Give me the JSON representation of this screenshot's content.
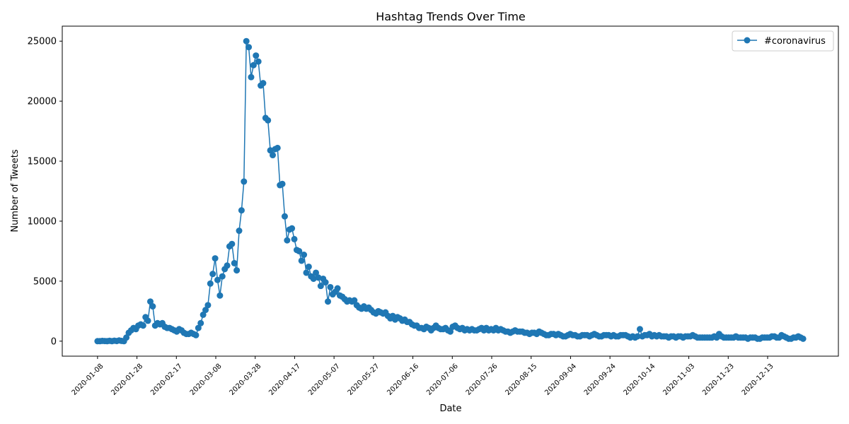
{
  "chart_data": {
    "type": "line",
    "title": "Hashtag Trends Over Time",
    "xlabel": "Date",
    "ylabel": "Number of Tweets",
    "x_start_date": "2020-01-08",
    "x_end_date": "2020-12-31",
    "ylim": [
      -1250,
      26250
    ],
    "yticks": [
      0,
      5000,
      10000,
      15000,
      20000,
      25000
    ],
    "xtick_labels": [
      "2020-01-08",
      "2020-01-28",
      "2020-02-17",
      "2020-03-08",
      "2020-03-28",
      "2020-04-17",
      "2020-05-07",
      "2020-05-27",
      "2020-06-16",
      "2020-07-06",
      "2020-07-26",
      "2020-08-15",
      "2020-09-04",
      "2020-09-24",
      "2020-10-14",
      "2020-11-03",
      "2020-11-23",
      "2020-12-13"
    ],
    "grid": false,
    "legend_position": "top-right",
    "color": "#1f77b4",
    "series": [
      {
        "name": "#coronavirus",
        "values": [
          0,
          0,
          20,
          10,
          0,
          30,
          0,
          40,
          10,
          60,
          20,
          0,
          300,
          700,
          900,
          1100,
          1000,
          1300,
          1400,
          1300,
          2000,
          1700,
          3300,
          2900,
          1300,
          1500,
          1400,
          1500,
          1200,
          1100,
          1100,
          1000,
          900,
          800,
          1000,
          900,
          700,
          600,
          600,
          700,
          600,
          500,
          1100,
          1500,
          2200,
          2600,
          3000,
          4800,
          5600,
          6900,
          5100,
          3800,
          5400,
          6000,
          6300,
          7900,
          8100,
          6500,
          5900,
          9200,
          10900,
          13300,
          25000,
          24500,
          22000,
          23000,
          23800,
          23300,
          21300,
          21500,
          18600,
          18400,
          15900,
          15500,
          16000,
          16100,
          13000,
          13100,
          10400,
          8400,
          9300,
          9400,
          8500,
          7600,
          7500,
          6700,
          7200,
          5700,
          6200,
          5400,
          5200,
          5700,
          5300,
          4600,
          5200,
          4900,
          3300,
          4500,
          3900,
          4100,
          4400,
          3800,
          3700,
          3500,
          3300,
          3400,
          3300,
          3400,
          3000,
          2800,
          2700,
          2900,
          2700,
          2800,
          2600,
          2400,
          2300,
          2500,
          2400,
          2300,
          2400,
          2100,
          1900,
          2100,
          1800,
          2000,
          1900,
          1700,
          1800,
          1600,
          1600,
          1400,
          1300,
          1300,
          1100,
          1100,
          1000,
          1200,
          1100,
          900,
          1100,
          1300,
          1100,
          1000,
          1000,
          1100,
          900,
          800,
          1200,
          1300,
          1100,
          1000,
          1100,
          900,
          1000,
          900,
          1000,
          900,
          900,
          1000,
          1100,
          900,
          1100,
          900,
          1000,
          900,
          1100,
          900,
          1000,
          900,
          800,
          800,
          700,
          800,
          900,
          800,
          800,
          800,
          700,
          700,
          600,
          700,
          700,
          600,
          800,
          700,
          600,
          500,
          500,
          600,
          600,
          500,
          600,
          500,
          400,
          400,
          500,
          600,
          500,
          500,
          400,
          400,
          500,
          500,
          500,
          400,
          500,
          600,
          500,
          400,
          400,
          500,
          500,
          500,
          400,
          500,
          400,
          400,
          500,
          500,
          500,
          400,
          300,
          400,
          300,
          400,
          1000,
          400,
          500,
          500,
          600,
          400,
          500,
          400,
          500,
          400,
          400,
          400,
          300,
          400,
          400,
          300,
          400,
          400,
          300,
          400,
          400,
          400,
          500,
          400,
          300,
          300,
          300,
          300,
          300,
          300,
          300,
          400,
          300,
          600,
          400,
          300,
          300,
          300,
          300,
          300,
          400,
          300,
          300,
          300,
          300,
          200,
          300,
          300,
          300,
          200,
          200,
          300,
          300,
          300,
          300,
          400,
          400,
          300,
          300,
          500,
          400,
          300,
          200,
          200,
          300,
          300,
          400,
          300,
          200
        ]
      }
    ]
  }
}
